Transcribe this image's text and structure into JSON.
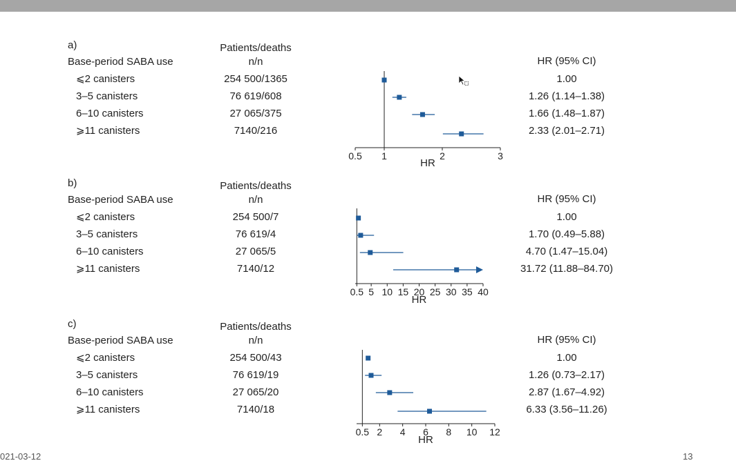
{
  "panels": [
    {
      "id": "a",
      "label": "a)",
      "col_use": "Base-period SABA use",
      "col_pd1": "Patients/deaths",
      "col_pd2": "n/n",
      "col_hr": "HR (95% CI)",
      "rows": [
        {
          "use": "⩽2 canisters",
          "pd": "254 500/1365",
          "hr_text": "1.00"
        },
        {
          "use": "3–5 canisters",
          "pd": "76 619/608",
          "hr_text": "1.26 (1.14–1.38)"
        },
        {
          "use": "6–10 canisters",
          "pd": "27 065/375",
          "hr_text": "1.66 (1.48–1.87)"
        },
        {
          "use": "⩾11 canisters",
          "pd": "7140/216",
          "hr_text": "2.33 (2.01–2.71)"
        }
      ]
    },
    {
      "id": "b",
      "label": "b)",
      "col_use": "Base-period SABA use",
      "col_pd1": "Patients/deaths",
      "col_pd2": "n/n",
      "col_hr": "HR (95% CI)",
      "rows": [
        {
          "use": "⩽2 canisters",
          "pd": "254 500/7",
          "hr_text": "1.00"
        },
        {
          "use": "3–5 canisters",
          "pd": "76 619/4",
          "hr_text": "1.70 (0.49–5.88)"
        },
        {
          "use": "6–10 canisters",
          "pd": "27 065/5",
          "hr_text": "4.70 (1.47–15.04)"
        },
        {
          "use": "⩾11 canisters",
          "pd": "7140/12",
          "hr_text": "31.72 (11.88–84.70)"
        }
      ]
    },
    {
      "id": "c",
      "label": "c)",
      "col_use": "Base-period SABA use",
      "col_pd1": "Patients/deaths",
      "col_pd2": "n/n",
      "col_hr": "HR (95% CI)",
      "rows": [
        {
          "use": "⩽2 canisters",
          "pd": "254 500/43",
          "hr_text": "1.00"
        },
        {
          "use": "3–5 canisters",
          "pd": "76 619/19",
          "hr_text": "1.26 (0.73–2.17)"
        },
        {
          "use": "6–10 canisters",
          "pd": "27 065/20",
          "hr_text": "2.87 (1.67–4.92)"
        },
        {
          "use": "⩾11 canisters",
          "pd": "7140/18",
          "hr_text": "6.33 (3.56–11.26)"
        }
      ]
    }
  ],
  "chart_data": [
    {
      "type": "scatter",
      "subtype": "forest",
      "xlabel": "HR",
      "xlim": [
        0.5,
        3
      ],
      "xticks": [
        "0.5",
        "1",
        "2",
        "3"
      ],
      "reference_line": 1,
      "categories": [
        "⩽2 canisters",
        "3–5 canisters",
        "6–10 canisters",
        "⩾11 canisters"
      ],
      "hr": [
        1.0,
        1.26,
        1.66,
        2.33
      ],
      "ci_low": [
        1.0,
        1.14,
        1.48,
        2.01
      ],
      "ci_high": [
        1.0,
        1.38,
        1.87,
        2.71
      ],
      "marker_color": "#1f5b99"
    },
    {
      "type": "scatter",
      "subtype": "forest",
      "xlabel": "HR",
      "xlim": [
        0,
        40
      ],
      "xticks": [
        "0.5",
        "5",
        "10",
        "15",
        "20",
        "25",
        "30",
        "35",
        "40"
      ],
      "reference_line": 0.5,
      "categories": [
        "⩽2 canisters",
        "3–5 canisters",
        "6–10 canisters",
        "⩾11 canisters"
      ],
      "hr": [
        1.0,
        1.7,
        4.7,
        31.72
      ],
      "ci_low": [
        1.0,
        0.49,
        1.47,
        11.88
      ],
      "ci_high": [
        1.0,
        5.88,
        15.04,
        84.7
      ],
      "ci_truncated_arrow": [
        false,
        false,
        false,
        true
      ],
      "marker_color": "#1f5b99"
    },
    {
      "type": "scatter",
      "subtype": "forest",
      "xlabel": "HR",
      "xlim": [
        0,
        12
      ],
      "xticks": [
        "0.5",
        "2",
        "4",
        "6",
        "8",
        "10",
        "12"
      ],
      "reference_line": 0.5,
      "categories": [
        "⩽2 canisters",
        "3–5 canisters",
        "6–10 canisters",
        "⩾11 canisters"
      ],
      "hr": [
        1.0,
        1.26,
        2.87,
        6.33
      ],
      "ci_low": [
        1.0,
        0.73,
        1.67,
        3.56
      ],
      "ci_high": [
        1.0,
        2.17,
        4.92,
        11.26
      ],
      "marker_color": "#1f5b99"
    }
  ],
  "footer": {
    "date": "021-03-12",
    "page": "13"
  }
}
